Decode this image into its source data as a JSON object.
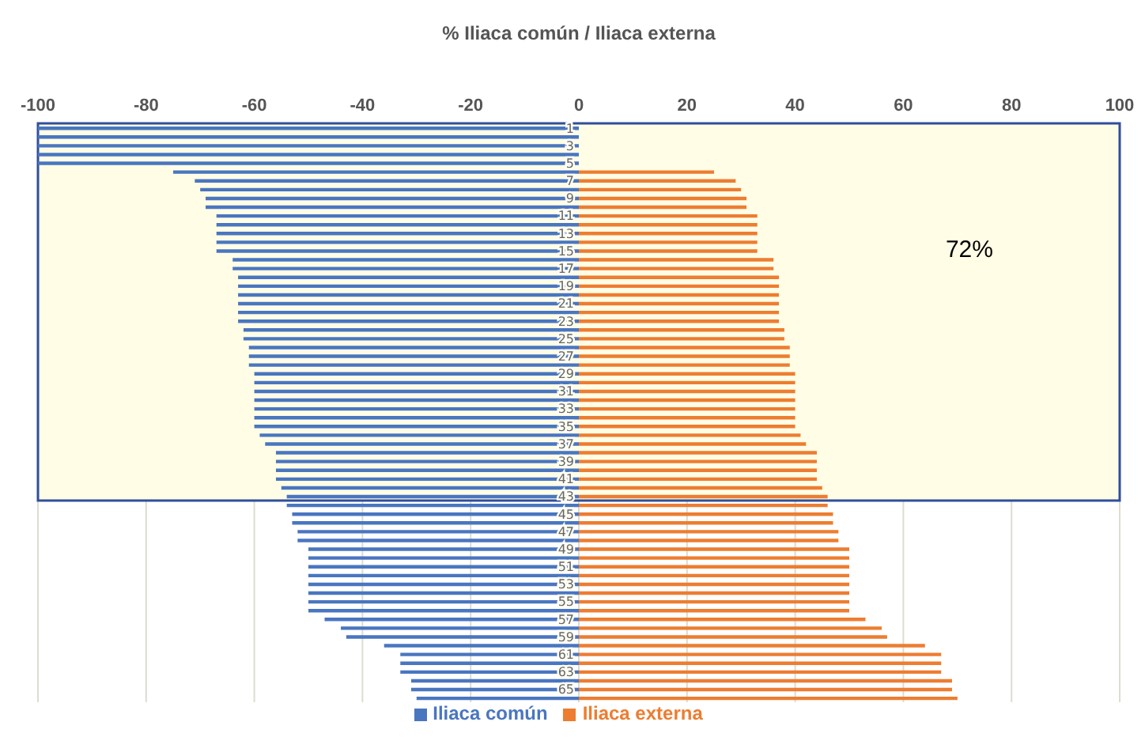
{
  "chart_data": {
    "type": "bar",
    "orientation": "horizontal",
    "stacked": true,
    "title": "% Iliaca común / Iliaca externa",
    "categories": [
      "1",
      null,
      "3",
      null,
      "5",
      null,
      "7",
      null,
      "9",
      null,
      "11",
      null,
      "13",
      null,
      "15",
      null,
      "17",
      null,
      "19",
      null,
      "21",
      null,
      "23",
      null,
      "25",
      null,
      "27",
      null,
      "29",
      null,
      "31",
      null,
      "33",
      null,
      "35",
      null,
      "37",
      null,
      "39",
      null,
      "41",
      null,
      "43",
      null,
      "45",
      null,
      "47",
      null,
      "49",
      null,
      "51",
      null,
      "53",
      null,
      "55",
      null,
      "57",
      null,
      "59",
      null,
      "61",
      null,
      "63",
      null,
      "65",
      null
    ],
    "series": [
      {
        "name": "Iliaca común",
        "color": "#4a76c0",
        "values": [
          -100,
          -100,
          -100,
          -100,
          -100,
          -75,
          -71,
          -70,
          -69,
          -69,
          -67,
          -67,
          -67,
          -67,
          -67,
          -64,
          -64,
          -63,
          -63,
          -63,
          -63,
          -63,
          -63,
          -62,
          -62,
          -61,
          -61,
          -61,
          -60,
          -60,
          -60,
          -60,
          -60,
          -60,
          -60,
          -59,
          -58,
          -56,
          -56,
          -56,
          -56,
          -55,
          -54,
          -54,
          -53,
          -53,
          -52,
          -52,
          -50,
          -50,
          -50,
          -50,
          -50,
          -50,
          -50,
          -50,
          -47,
          -44,
          -43,
          -36,
          -33,
          -33,
          -33,
          -31,
          -31,
          -30
        ]
      },
      {
        "name": "Iliaca externa",
        "color": "#ed7d31",
        "values": [
          0,
          0,
          0,
          0,
          0,
          25,
          29,
          30,
          31,
          31,
          33,
          33,
          33,
          33,
          33,
          36,
          36,
          37,
          37,
          37,
          37,
          37,
          37,
          38,
          38,
          39,
          39,
          39,
          40,
          40,
          40,
          40,
          40,
          40,
          40,
          41,
          42,
          44,
          44,
          44,
          44,
          45,
          46,
          46,
          47,
          47,
          48,
          48,
          50,
          50,
          50,
          50,
          50,
          50,
          50,
          50,
          53,
          56,
          57,
          64,
          67,
          67,
          67,
          69,
          69,
          70
        ]
      }
    ],
    "xlim": [
      -100,
      100
    ],
    "xticks": [
      -100,
      -80,
      -60,
      -40,
      -20,
      0,
      20,
      40,
      60,
      80,
      100
    ],
    "grid": "x",
    "legend": "bottom",
    "bands": [
      {
        "axis": "y",
        "from": "1",
        "to": "43",
        "label": "72%",
        "color": "#fffde6"
      }
    ]
  }
}
